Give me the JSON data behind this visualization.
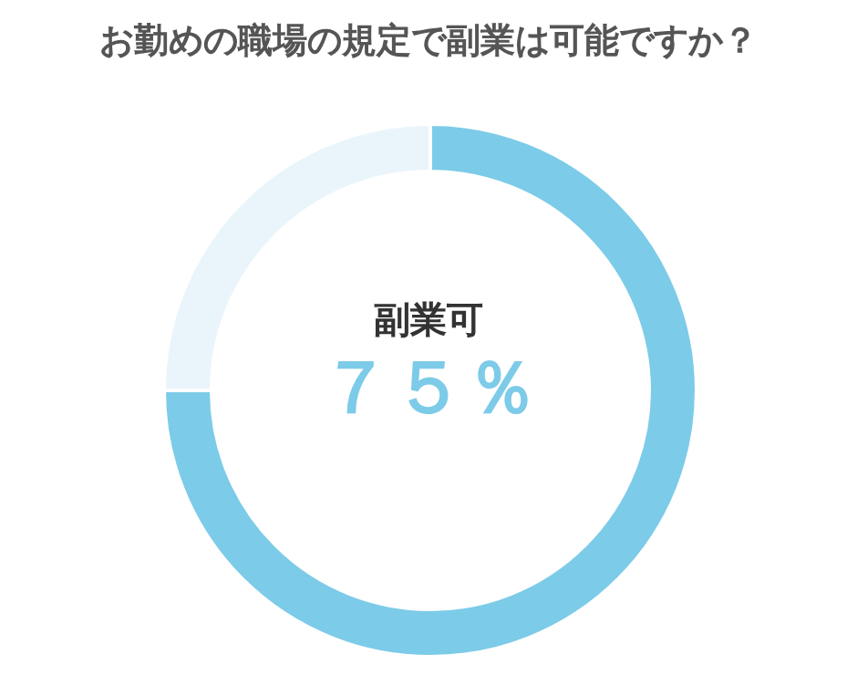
{
  "chart_data": {
    "type": "donut",
    "title": "お勤めの職場の規定で副業は可能ですか？",
    "categories": [
      "副業可",
      null
    ],
    "values": [
      75,
      25
    ],
    "colors": [
      "#7ccbe8",
      "#eaf5fb"
    ],
    "value_labels": [
      "７５％",
      null
    ],
    "legend": false
  }
}
